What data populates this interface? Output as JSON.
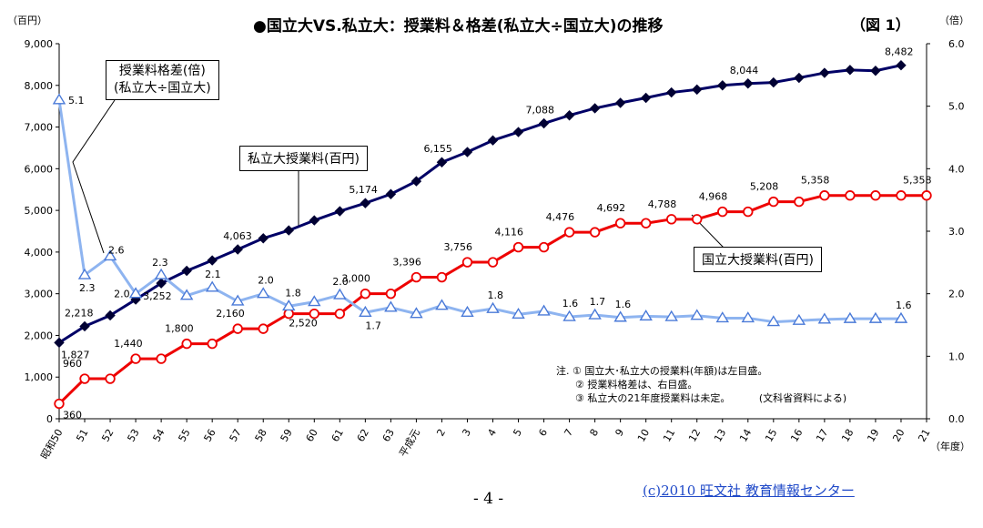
{
  "chart_data": {
    "type": "line",
    "title": "●国立大VS.私立大：授業料＆格差(私立大÷国立大)の推移",
    "figure_label": "（図 1）",
    "left_axis_unit": "（百円）",
    "right_axis_unit": "（倍）",
    "x_axis_unit": "（年度）",
    "categories": [
      "昭和50",
      "51",
      "52",
      "53",
      "54",
      "55",
      "56",
      "57",
      "58",
      "59",
      "60",
      "61",
      "62",
      "63",
      "平成元",
      "2",
      "3",
      "4",
      "5",
      "6",
      "7",
      "8",
      "9",
      "10",
      "11",
      "12",
      "13",
      "14",
      "15",
      "16",
      "17",
      "18",
      "19",
      "20",
      "21"
    ],
    "ylim_left": [
      0,
      9000
    ],
    "yticks_left": [
      "0",
      "1,000",
      "2,000",
      "3,000",
      "4,000",
      "5,000",
      "6,000",
      "7,000",
      "8,000",
      "9,000"
    ],
    "ylim_right": [
      0,
      6
    ],
    "yticks_right": [
      "0.0",
      "1.0",
      "2.0",
      "3.0",
      "4.0",
      "5.0",
      "6.0"
    ],
    "grid": false,
    "series": [
      {
        "name": "私立大授業料(百円)",
        "axis": "left",
        "color": "#000066",
        "values": [
          1827,
          2218,
          2480,
          2860,
          3252,
          3550,
          3800,
          4063,
          4330,
          4520,
          4760,
          4980,
          5174,
          5390,
          5700,
          6155,
          6400,
          6680,
          6880,
          7088,
          7280,
          7450,
          7580,
          7700,
          7830,
          7900,
          8000,
          8044,
          8070,
          8180,
          8300,
          8370,
          8350,
          8482,
          null
        ],
        "labels": {
          "0": "1,827",
          "1": "2,218",
          "4": "3,252",
          "7": "4,063",
          "12": "5,174",
          "15": "6,155",
          "19": "7,088",
          "27": "8,044",
          "33": "8,482"
        }
      },
      {
        "name": "国立大授業料(百円)",
        "axis": "left",
        "color": "#ee0000",
        "values": [
          360,
          960,
          960,
          1440,
          1440,
          1800,
          1800,
          2160,
          2160,
          2520,
          2520,
          2520,
          3000,
          3000,
          3396,
          3396,
          3756,
          3756,
          4116,
          4116,
          4476,
          4476,
          4692,
          4692,
          4788,
          4788,
          4968,
          4968,
          5208,
          5208,
          5358,
          5358,
          5358,
          5358,
          5358
        ],
        "labels": {
          "0": "360",
          "1": "960",
          "3": "1,440",
          "5": "1,800",
          "7": "2,160",
          "10": "2,520",
          "12": "3,000",
          "14": "3,396",
          "16": "3,756",
          "18": "4,116",
          "20": "4,476",
          "22": "4,692",
          "24": "4,788",
          "26": "4,968",
          "28": "5,208",
          "30": "5,358",
          "34": "5,358"
        }
      },
      {
        "name": "授業料格差(倍)",
        "axis": "right",
        "color": "#8eb4f0",
        "values": [
          5.1,
          2.3,
          2.6,
          2.0,
          2.3,
          1.97,
          2.1,
          1.88,
          2.0,
          1.8,
          1.87,
          1.98,
          1.7,
          1.78,
          1.68,
          1.81,
          1.7,
          1.76,
          1.67,
          1.72,
          1.63,
          1.66,
          1.62,
          1.64,
          1.63,
          1.65,
          1.61,
          1.61,
          1.55,
          1.57,
          1.59,
          1.6,
          1.6,
          1.6,
          null
        ],
        "labels": {
          "0": "5.1",
          "1": "2.3",
          "2": "2.6",
          "3": "2.0",
          "4": "2.3",
          "6": "2.1",
          "8": "2.0",
          "9": "1.8",
          "11": "2.0",
          "12": "1.7",
          "17": "1.8",
          "20": "1.6",
          "21": "1.7",
          "22": "1.6",
          "33": "1.6"
        }
      }
    ]
  },
  "callouts": {
    "gap": [
      "授業料格差(倍)",
      "(私立大÷国立大)"
    ],
    "private": "私立大授業料(百円)",
    "national": "国立大授業料(百円)"
  },
  "notes": {
    "line1": "注. ①  国立大･私立大の授業料(年額)は左目盛。",
    "line2": "②  授業料格差は、右目盛。",
    "line3": "③  私立大の21年度授業料は未定。",
    "source": "(文科省資料による)"
  },
  "footer": {
    "page": "- 4 -",
    "credit": "(c)2010 旺文社 教育情報センター"
  }
}
